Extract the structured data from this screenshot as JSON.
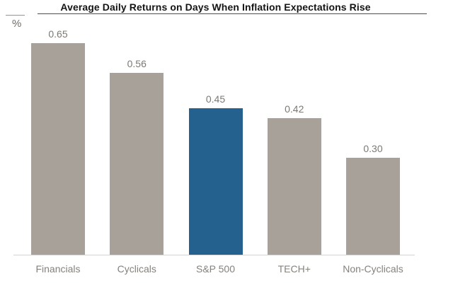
{
  "header": {
    "title": "Average Daily Returns on Days When Inflation Expectations Rise",
    "y_axis_unit": "%"
  },
  "chart_data": {
    "type": "bar",
    "title": "Average Daily Returns on Days When Inflation Expectations Rise",
    "xlabel": "",
    "ylabel": "%",
    "categories": [
      "Financials",
      "Cyclicals",
      "S&P 500",
      "TECH+",
      "Non-Cyclicals"
    ],
    "values": [
      0.65,
      0.56,
      0.45,
      0.42,
      0.3
    ],
    "value_labels": [
      "0.65",
      "0.56",
      "0.45",
      "0.42",
      "0.30"
    ],
    "highlight_index": 2,
    "highlighted_category": "S&P 500",
    "colors": {
      "bar": "#a8a19a",
      "highlight": "#25618f",
      "title_text": "#141414",
      "label_text": "#85817d",
      "axis_line": "#d4d3d1"
    },
    "ylim": [
      0,
      0.72
    ],
    "grid": false,
    "legend": false,
    "data_labels_shown": true
  }
}
